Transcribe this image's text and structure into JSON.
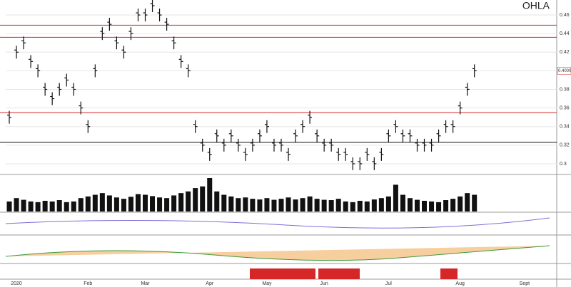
{
  "chart_data": {
    "type": "ohlc",
    "title": "OHLA",
    "categories": [
      null,
      "2020",
      null,
      null,
      null,
      null,
      null,
      null,
      null,
      null,
      null,
      "Feb",
      null,
      null,
      null,
      null,
      null,
      null,
      null,
      "Mar",
      null,
      null,
      null,
      null,
      null,
      null,
      null,
      null,
      "Apr",
      null,
      null,
      null,
      null,
      null,
      null,
      null,
      "May",
      null,
      null,
      null,
      null,
      null,
      null,
      null,
      "Jun",
      null,
      null,
      null,
      null,
      null,
      null,
      null,
      null,
      "Jul",
      null,
      null,
      null,
      null,
      null,
      null,
      null,
      null,
      null,
      "Aug",
      null,
      null,
      null,
      null,
      null,
      null,
      null,
      null,
      "Sept",
      null,
      null,
      null,
      null
    ],
    "values": [
      0.35,
      0.42,
      0.43,
      0.41,
      0.4,
      0.38,
      0.37,
      0.38,
      0.39,
      0.38,
      0.36,
      0.34,
      0.4,
      0.44,
      0.45,
      0.43,
      0.42,
      0.44,
      0.46,
      0.46,
      0.47,
      0.46,
      0.45,
      0.43,
      0.41,
      0.4,
      0.34,
      0.32,
      0.31,
      0.33,
      0.32,
      0.33,
      0.32,
      0.31,
      0.32,
      0.33,
      0.34,
      0.32,
      0.32,
      0.31,
      0.33,
      0.34,
      0.35,
      0.33,
      0.32,
      0.32,
      0.31,
      0.31,
      0.3,
      0.3,
      0.31,
      0.3,
      0.31,
      0.33,
      0.34,
      0.33,
      0.33,
      0.32,
      0.32,
      0.32,
      0.33,
      0.34,
      0.34,
      0.36,
      0.38,
      0.4,
      null,
      null,
      null,
      null,
      null,
      null,
      null,
      null,
      null,
      null,
      null
    ],
    "color": "#111111",
    "ylim": [
      0.29,
      0.47
    ],
    "yticks": [
      0.3,
      0.32,
      0.34,
      0.36,
      0.38,
      0.4,
      0.42,
      0.44,
      0.46
    ],
    "grid": true,
    "last_price": {
      "value": 0.4,
      "label": "0.4000"
    },
    "levels": [
      {
        "value": 0.449,
        "color": "#d62728"
      },
      {
        "value": 0.436,
        "color": "#d62728"
      },
      {
        "value": 0.355,
        "color": "#d62728"
      },
      {
        "value": 0.323,
        "color": "#111111"
      }
    ],
    "volume": {
      "color": "#111111",
      "ylim": [
        0,
        100
      ],
      "values": [
        30,
        40,
        35,
        30,
        28,
        32,
        30,
        34,
        28,
        30,
        40,
        45,
        50,
        55,
        48,
        42,
        38,
        44,
        52,
        50,
        46,
        42,
        40,
        48,
        55,
        60,
        70,
        75,
        100,
        60,
        50,
        45,
        40,
        42,
        38,
        36,
        40,
        35,
        38,
        42,
        36,
        40,
        45,
        38,
        35,
        34,
        38,
        30,
        28,
        32,
        30,
        36,
        40,
        45,
        80,
        50,
        40,
        35,
        32,
        30,
        28,
        34,
        38,
        45,
        55,
        50,
        null,
        null,
        null,
        null,
        null,
        null,
        null,
        null,
        null,
        null,
        null
      ]
    }
  }
}
